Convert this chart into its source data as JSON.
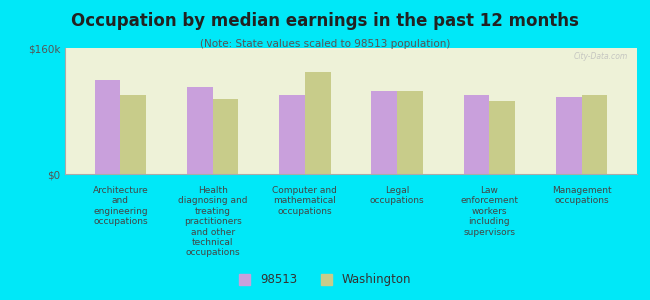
{
  "title": "Occupation by median earnings in the past 12 months",
  "subtitle": "(Note: State values scaled to 98513 population)",
  "categories": [
    "Architecture\nand\nengineering\noccupations",
    "Health\ndiagnosing and\ntreating\npractitioners\nand other\ntechnical\noccupations",
    "Computer and\nmathematical\noccupations",
    "Legal\noccupations",
    "Law\nenforcement\nworkers\nincluding\nsupervisors",
    "Management\noccupations"
  ],
  "values_98513": [
    120000,
    110000,
    100000,
    105000,
    100000,
    98000
  ],
  "values_washington": [
    100000,
    95000,
    130000,
    105000,
    93000,
    100000
  ],
  "color_98513": "#c9a0dc",
  "color_washington": "#c8cc8a",
  "background_outer": "#00e8f8",
  "background_plot": "#eef2d8",
  "ylim": [
    0,
    160000
  ],
  "ytick_labels": [
    "$0",
    "$160k"
  ],
  "legend_label_1": "98513",
  "legend_label_2": "Washington",
  "watermark": "City-Data.com"
}
